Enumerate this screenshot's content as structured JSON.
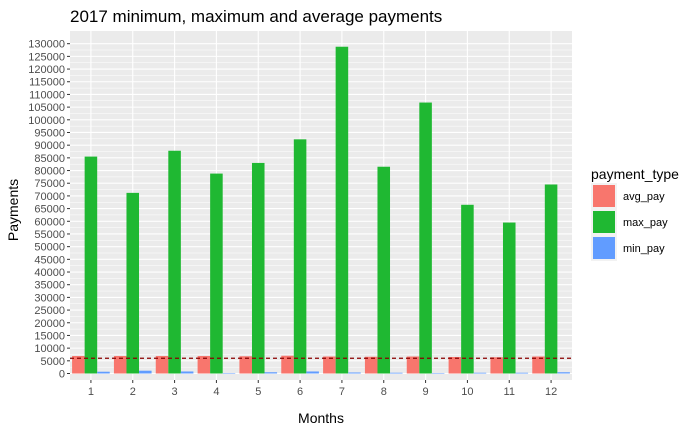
{
  "chart_data": {
    "type": "bar",
    "title": "2017 minimum, maximum and average payments",
    "xlabel": "Months",
    "ylabel": "Payments",
    "categories": [
      "1",
      "2",
      "3",
      "4",
      "5",
      "6",
      "7",
      "8",
      "9",
      "10",
      "11",
      "12"
    ],
    "ylim": [
      0,
      130000
    ],
    "y_ticks": [
      0,
      5000,
      10000,
      15000,
      20000,
      25000,
      30000,
      35000,
      40000,
      45000,
      50000,
      55000,
      60000,
      65000,
      70000,
      75000,
      80000,
      85000,
      90000,
      95000,
      100000,
      105000,
      110000,
      115000,
      120000,
      125000,
      130000
    ],
    "legend": {
      "title": "payment_type",
      "position": "right"
    },
    "grid": true,
    "series": [
      {
        "name": "avg_pay",
        "color": "#F8766D",
        "values": [
          6900,
          6900,
          6900,
          6900,
          6800,
          7000,
          6700,
          6600,
          6700,
          6500,
          6400,
          6700
        ]
      },
      {
        "name": "max_pay",
        "color": "#1FB832",
        "values": [
          85500,
          71200,
          87800,
          78800,
          83000,
          92300,
          128800,
          81500,
          106800,
          66500,
          59500,
          74500
        ]
      },
      {
        "name": "min_pay",
        "color": "#619CFF",
        "values": [
          700,
          1100,
          800,
          200,
          500,
          800,
          400,
          300,
          200,
          300,
          300,
          500
        ]
      }
    ],
    "reference_line": {
      "value": 6000,
      "style": "dashed",
      "color": "#8B0000"
    }
  }
}
